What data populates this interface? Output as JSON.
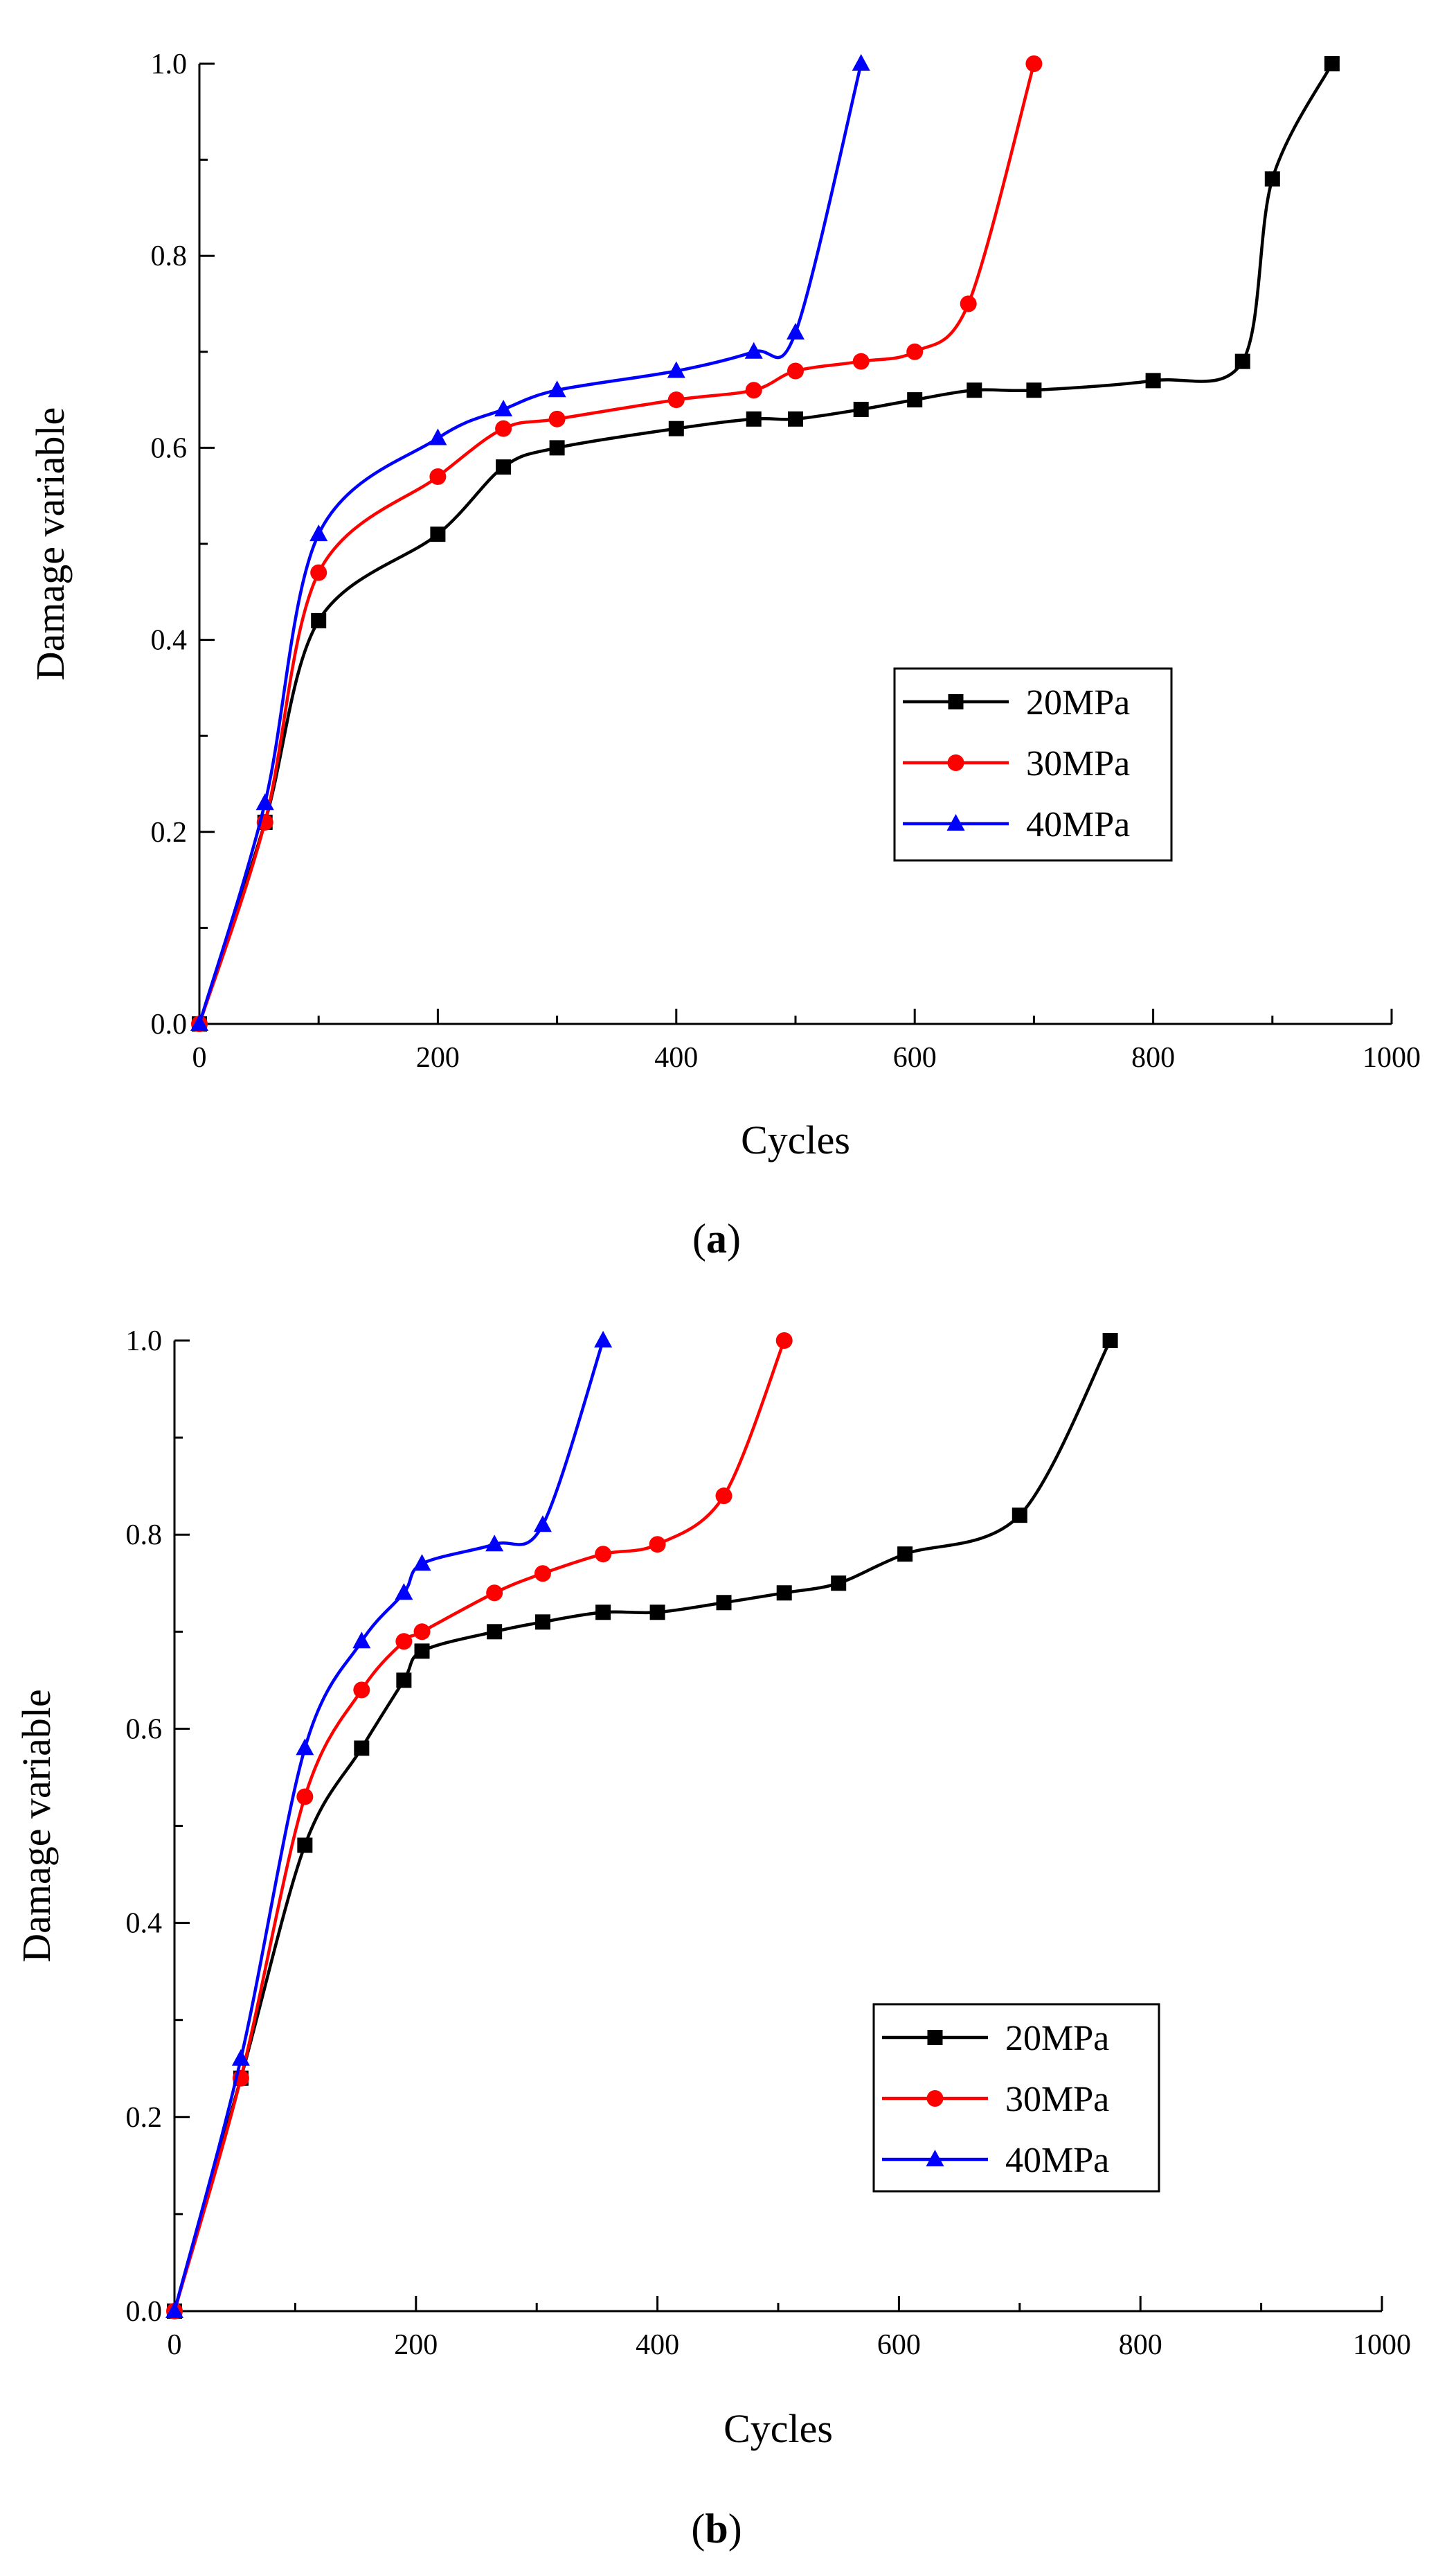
{
  "chart_data": [
    {
      "type": "line",
      "caption_letter": "a",
      "caption_open": "(",
      "caption_close": ")",
      "title": "",
      "xlabel": "Cycles",
      "ylabel": "Damage variable",
      "xlim": [
        0,
        1000
      ],
      "ylim": [
        0.0,
        1.0
      ],
      "xticks": [
        "0",
        "200",
        "400",
        "600",
        "800",
        "1000"
      ],
      "yticks": [
        "0.0",
        "0.2",
        "0.4",
        "0.6",
        "0.8",
        "1.0"
      ],
      "legend_position": "center-right",
      "series": [
        {
          "name": "20MPa",
          "color": "#000000",
          "marker": "square",
          "x": [
            0,
            55,
            100,
            200,
            255,
            300,
            400,
            465,
            500,
            555,
            600,
            650,
            700,
            800,
            875,
            900,
            950
          ],
          "y": [
            0.0,
            0.21,
            0.42,
            0.51,
            0.58,
            0.6,
            0.62,
            0.63,
            0.63,
            0.64,
            0.65,
            0.66,
            0.66,
            0.67,
            0.69,
            0.88,
            1.0
          ]
        },
        {
          "name": "30MPa",
          "color": "#ff0000",
          "marker": "circle",
          "x": [
            0,
            55,
            100,
            200,
            255,
            300,
            400,
            465,
            500,
            555,
            600,
            645,
            700
          ],
          "y": [
            0.0,
            0.21,
            0.47,
            0.57,
            0.62,
            0.63,
            0.65,
            0.66,
            0.68,
            0.69,
            0.7,
            0.75,
            1.0
          ]
        },
        {
          "name": "40MPa",
          "color": "#0000ff",
          "marker": "triangle",
          "x": [
            0,
            55,
            100,
            200,
            255,
            300,
            400,
            465,
            500,
            555
          ],
          "y": [
            0.0,
            0.23,
            0.51,
            0.61,
            0.64,
            0.66,
            0.68,
            0.7,
            0.72,
            1.0
          ]
        }
      ]
    },
    {
      "type": "line",
      "caption_letter": "b",
      "caption_open": "(",
      "caption_close": ")",
      "title": "",
      "xlabel": "Cycles",
      "ylabel": "Damage variable",
      "xlim": [
        0,
        1000
      ],
      "ylim": [
        0.0,
        1.0
      ],
      "xticks": [
        "0",
        "200",
        "400",
        "600",
        "800",
        "1000"
      ],
      "yticks": [
        "0.0",
        "0.2",
        "0.4",
        "0.6",
        "0.8",
        "1.0"
      ],
      "legend_position": "lower-right",
      "series": [
        {
          "name": "20MPa",
          "color": "#000000",
          "marker": "square",
          "x": [
            0,
            55,
            108,
            155,
            190,
            205,
            265,
            305,
            355,
            400,
            455,
            505,
            550,
            605,
            700,
            775
          ],
          "y": [
            0.0,
            0.24,
            0.48,
            0.58,
            0.65,
            0.68,
            0.7,
            0.71,
            0.72,
            0.72,
            0.73,
            0.74,
            0.75,
            0.78,
            0.82,
            1.0
          ]
        },
        {
          "name": "30MPa",
          "color": "#ff0000",
          "marker": "circle",
          "x": [
            0,
            55,
            108,
            155,
            190,
            205,
            265,
            305,
            355,
            400,
            455,
            505
          ],
          "y": [
            0.0,
            0.24,
            0.53,
            0.64,
            0.69,
            0.7,
            0.74,
            0.76,
            0.78,
            0.79,
            0.84,
            1.0
          ]
        },
        {
          "name": "40MPa",
          "color": "#0000ff",
          "marker": "triangle",
          "x": [
            0,
            55,
            108,
            155,
            190,
            205,
            265,
            305,
            355
          ],
          "y": [
            0.0,
            0.26,
            0.58,
            0.69,
            0.74,
            0.77,
            0.79,
            0.81,
            1.0
          ]
        }
      ]
    }
  ]
}
